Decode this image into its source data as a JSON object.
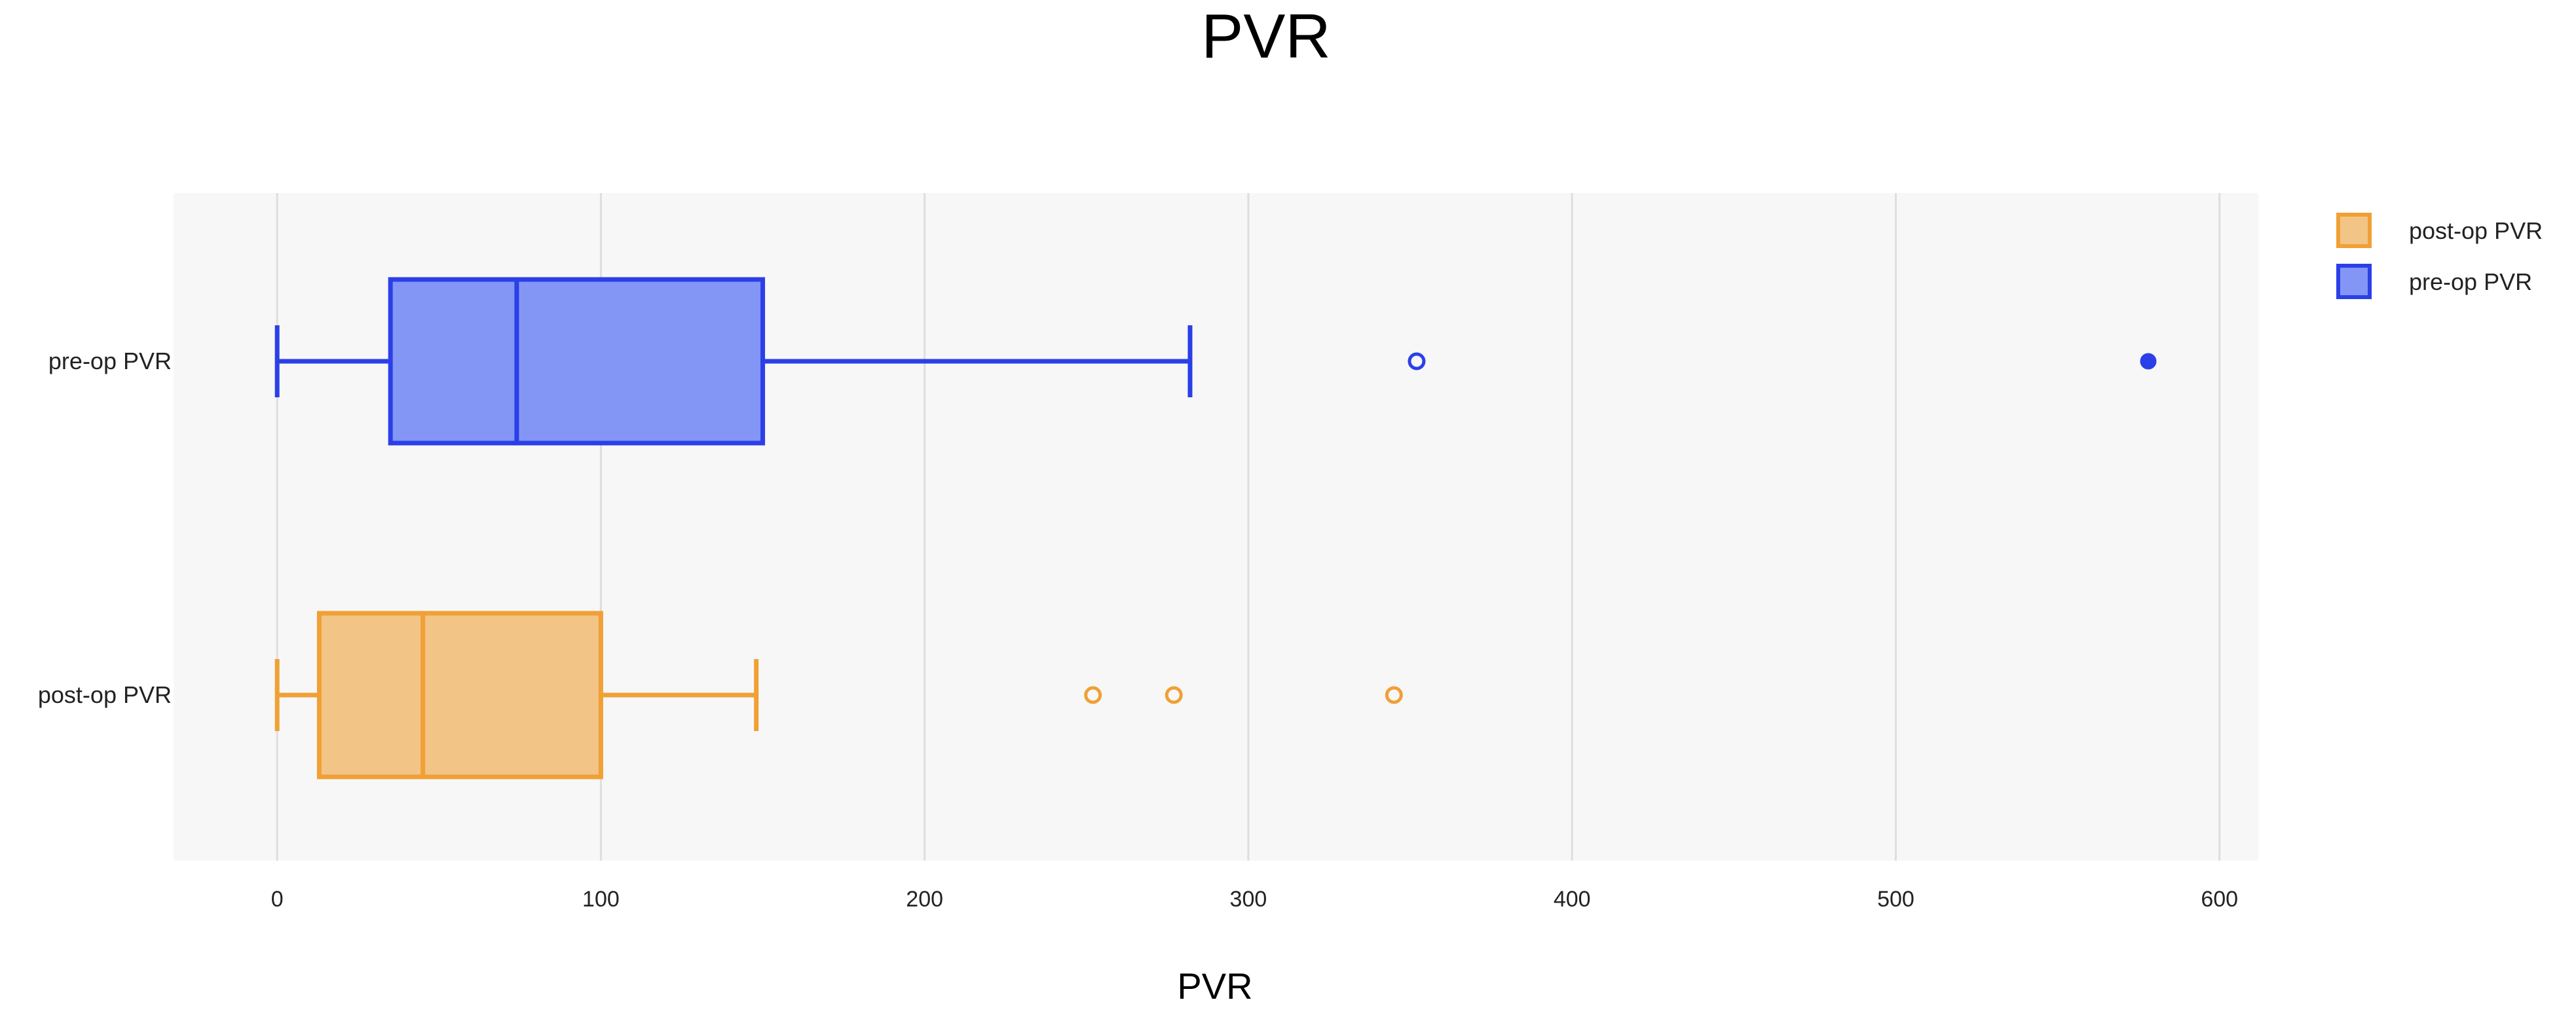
{
  "chart_data": {
    "type": "box",
    "title": "PVR",
    "xlabel": "PVR",
    "ylabel": "",
    "xlim": [
      -32,
      612
    ],
    "xticks": [
      0,
      100,
      200,
      300,
      400,
      500,
      600
    ],
    "grid": true,
    "orientation": "horizontal",
    "legend_position": "top-right",
    "series": [
      {
        "name": "pre-op PVR",
        "color": "#2b3fe8",
        "fill": "#8496f5",
        "min": 0,
        "q1": 35,
        "median": 74,
        "q3": 150,
        "max": 282,
        "outliers": [
          352
        ],
        "extremes": [
          578
        ]
      },
      {
        "name": "post-op PVR",
        "color": "#f0a035",
        "fill": "#f2c586",
        "min": 0,
        "q1": 13,
        "median": 45,
        "q3": 100,
        "max": 148,
        "outliers": [
          252,
          277,
          345
        ],
        "extremes": []
      }
    ],
    "legend_order": [
      "post-op PVR",
      "pre-op PVR"
    ]
  }
}
